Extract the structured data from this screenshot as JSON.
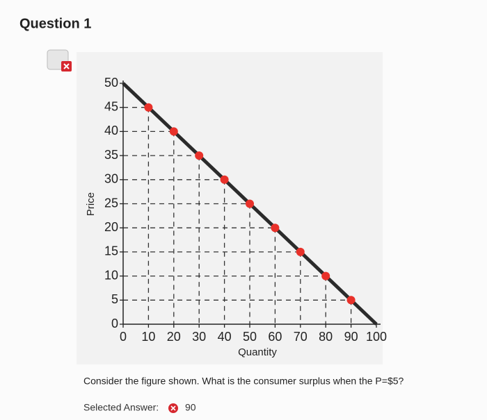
{
  "question": {
    "title": "Question 1",
    "prompt": "Consider the figure shown. What is the consumer surplus when the P=$5?",
    "answer_label": "Selected Answer:",
    "answer": 90
  },
  "chart_data": {
    "type": "line",
    "xlabel": "Quantity",
    "ylabel": "Price",
    "xlim": [
      0,
      100
    ],
    "ylim": [
      0,
      50
    ],
    "xticks": [
      0,
      10,
      20,
      30,
      40,
      50,
      60,
      70,
      80,
      90,
      100
    ],
    "yticks": [
      0,
      5,
      10,
      15,
      20,
      25,
      30,
      35,
      40,
      45,
      50
    ],
    "guides": true,
    "series": [
      {
        "style": "line",
        "color": "#2b2b2b",
        "x": [
          0,
          100
        ],
        "values": [
          50,
          0
        ]
      },
      {
        "style": "markers",
        "color": "#e8312a",
        "x": [
          10,
          20,
          30,
          40,
          50,
          60,
          70,
          80,
          90
        ],
        "values": [
          45,
          40,
          35,
          30,
          25,
          20,
          15,
          10,
          5
        ]
      }
    ]
  }
}
